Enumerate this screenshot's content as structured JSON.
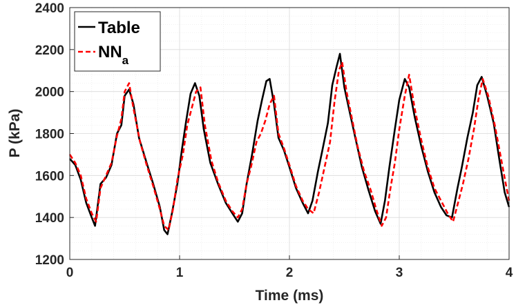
{
  "chart_data": {
    "type": "line",
    "title": "",
    "xlabel": "Time (ms)",
    "ylabel": "P (kPa)",
    "xlim": [
      0,
      4
    ],
    "ylim": [
      1200,
      2400
    ],
    "xticks": [
      0,
      1,
      2,
      3,
      4
    ],
    "yticks": [
      1200,
      1400,
      1600,
      1800,
      2000,
      2200,
      2400
    ],
    "grid": true,
    "minor_grid": true,
    "legend_position": "top-left",
    "series": [
      {
        "name": "Table",
        "legend_main": "Table",
        "legend_sub": "",
        "color": "#000000",
        "dash": "solid",
        "points": [
          [
            0.0,
            1680
          ],
          [
            0.05,
            1650
          ],
          [
            0.1,
            1580
          ],
          [
            0.15,
            1470
          ],
          [
            0.2,
            1400
          ],
          [
            0.23,
            1360
          ],
          [
            0.28,
            1560
          ],
          [
            0.33,
            1590
          ],
          [
            0.38,
            1650
          ],
          [
            0.43,
            1800
          ],
          [
            0.47,
            1840
          ],
          [
            0.5,
            1980
          ],
          [
            0.54,
            2010
          ],
          [
            0.58,
            1940
          ],
          [
            0.63,
            1780
          ],
          [
            0.7,
            1660
          ],
          [
            0.76,
            1560
          ],
          [
            0.82,
            1450
          ],
          [
            0.86,
            1340
          ],
          [
            0.89,
            1320
          ],
          [
            0.93,
            1420
          ],
          [
            0.98,
            1560
          ],
          [
            1.02,
            1720
          ],
          [
            1.06,
            1860
          ],
          [
            1.1,
            1990
          ],
          [
            1.14,
            2040
          ],
          [
            1.18,
            1980
          ],
          [
            1.22,
            1820
          ],
          [
            1.28,
            1660
          ],
          [
            1.35,
            1560
          ],
          [
            1.42,
            1470
          ],
          [
            1.48,
            1420
          ],
          [
            1.53,
            1380
          ],
          [
            1.57,
            1420
          ],
          [
            1.61,
            1560
          ],
          [
            1.66,
            1700
          ],
          [
            1.71,
            1860
          ],
          [
            1.75,
            1960
          ],
          [
            1.79,
            2050
          ],
          [
            1.82,
            2060
          ],
          [
            1.86,
            1940
          ],
          [
            1.9,
            1780
          ],
          [
            1.95,
            1720
          ],
          [
            2.0,
            1640
          ],
          [
            2.06,
            1540
          ],
          [
            2.12,
            1470
          ],
          [
            2.17,
            1420
          ],
          [
            2.21,
            1480
          ],
          [
            2.26,
            1620
          ],
          [
            2.3,
            1720
          ],
          [
            2.35,
            1850
          ],
          [
            2.39,
            2030
          ],
          [
            2.43,
            2120
          ],
          [
            2.46,
            2180
          ],
          [
            2.5,
            2020
          ],
          [
            2.55,
            1900
          ],
          [
            2.6,
            1780
          ],
          [
            2.66,
            1640
          ],
          [
            2.72,
            1530
          ],
          [
            2.78,
            1430
          ],
          [
            2.83,
            1370
          ],
          [
            2.87,
            1480
          ],
          [
            2.91,
            1640
          ],
          [
            2.96,
            1820
          ],
          [
            3.0,
            1960
          ],
          [
            3.05,
            2060
          ],
          [
            3.09,
            2020
          ],
          [
            3.14,
            1880
          ],
          [
            3.2,
            1740
          ],
          [
            3.26,
            1620
          ],
          [
            3.32,
            1520
          ],
          [
            3.38,
            1450
          ],
          [
            3.43,
            1410
          ],
          [
            3.48,
            1400
          ],
          [
            3.53,
            1540
          ],
          [
            3.57,
            1640
          ],
          [
            3.62,
            1780
          ],
          [
            3.67,
            1900
          ],
          [
            3.71,
            2030
          ],
          [
            3.75,
            2070
          ],
          [
            3.8,
            1980
          ],
          [
            3.86,
            1850
          ],
          [
            3.91,
            1680
          ],
          [
            3.96,
            1520
          ],
          [
            4.0,
            1450
          ]
        ]
      },
      {
        "name": "NNa",
        "legend_main": "NN",
        "legend_sub": "a",
        "color": "#ff0000",
        "dash": "7,4",
        "points": [
          [
            0.0,
            1700
          ],
          [
            0.05,
            1660
          ],
          [
            0.1,
            1600
          ],
          [
            0.15,
            1490
          ],
          [
            0.2,
            1420
          ],
          [
            0.24,
            1380
          ],
          [
            0.28,
            1540
          ],
          [
            0.33,
            1600
          ],
          [
            0.38,
            1660
          ],
          [
            0.43,
            1790
          ],
          [
            0.47,
            1870
          ],
          [
            0.5,
            2000
          ],
          [
            0.54,
            2040
          ],
          [
            0.58,
            1920
          ],
          [
            0.64,
            1760
          ],
          [
            0.7,
            1650
          ],
          [
            0.76,
            1550
          ],
          [
            0.82,
            1440
          ],
          [
            0.86,
            1360
          ],
          [
            0.9,
            1340
          ],
          [
            0.94,
            1440
          ],
          [
            0.98,
            1580
          ],
          [
            1.03,
            1700
          ],
          [
            1.07,
            1840
          ],
          [
            1.11,
            1920
          ],
          [
            1.15,
            2000
          ],
          [
            1.19,
            2020
          ],
          [
            1.23,
            1840
          ],
          [
            1.29,
            1670
          ],
          [
            1.35,
            1570
          ],
          [
            1.42,
            1480
          ],
          [
            1.48,
            1430
          ],
          [
            1.53,
            1400
          ],
          [
            1.57,
            1440
          ],
          [
            1.61,
            1560
          ],
          [
            1.65,
            1640
          ],
          [
            1.7,
            1760
          ],
          [
            1.74,
            1800
          ],
          [
            1.78,
            1860
          ],
          [
            1.82,
            1940
          ],
          [
            1.86,
            1980
          ],
          [
            1.9,
            1800
          ],
          [
            1.95,
            1730
          ],
          [
            2.0,
            1650
          ],
          [
            2.06,
            1550
          ],
          [
            2.12,
            1480
          ],
          [
            2.17,
            1440
          ],
          [
            2.22,
            1420
          ],
          [
            2.27,
            1520
          ],
          [
            2.32,
            1640
          ],
          [
            2.37,
            1760
          ],
          [
            2.41,
            1950
          ],
          [
            2.45,
            2100
          ],
          [
            2.48,
            2140
          ],
          [
            2.52,
            2000
          ],
          [
            2.57,
            1870
          ],
          [
            2.62,
            1740
          ],
          [
            2.68,
            1620
          ],
          [
            2.74,
            1530
          ],
          [
            2.79,
            1440
          ],
          [
            2.84,
            1360
          ],
          [
            2.88,
            1400
          ],
          [
            2.92,
            1540
          ],
          [
            2.96,
            1660
          ],
          [
            3.0,
            1820
          ],
          [
            3.05,
            1980
          ],
          [
            3.09,
            2080
          ],
          [
            3.14,
            1920
          ],
          [
            3.2,
            1770
          ],
          [
            3.26,
            1640
          ],
          [
            3.32,
            1540
          ],
          [
            3.38,
            1480
          ],
          [
            3.44,
            1420
          ],
          [
            3.49,
            1380
          ],
          [
            3.54,
            1480
          ],
          [
            3.58,
            1560
          ],
          [
            3.63,
            1680
          ],
          [
            3.68,
            1820
          ],
          [
            3.72,
            1960
          ],
          [
            3.76,
            2060
          ],
          [
            3.81,
            1980
          ],
          [
            3.87,
            1840
          ],
          [
            3.92,
            1700
          ],
          [
            3.97,
            1560
          ],
          [
            4.0,
            1480
          ]
        ]
      }
    ]
  }
}
